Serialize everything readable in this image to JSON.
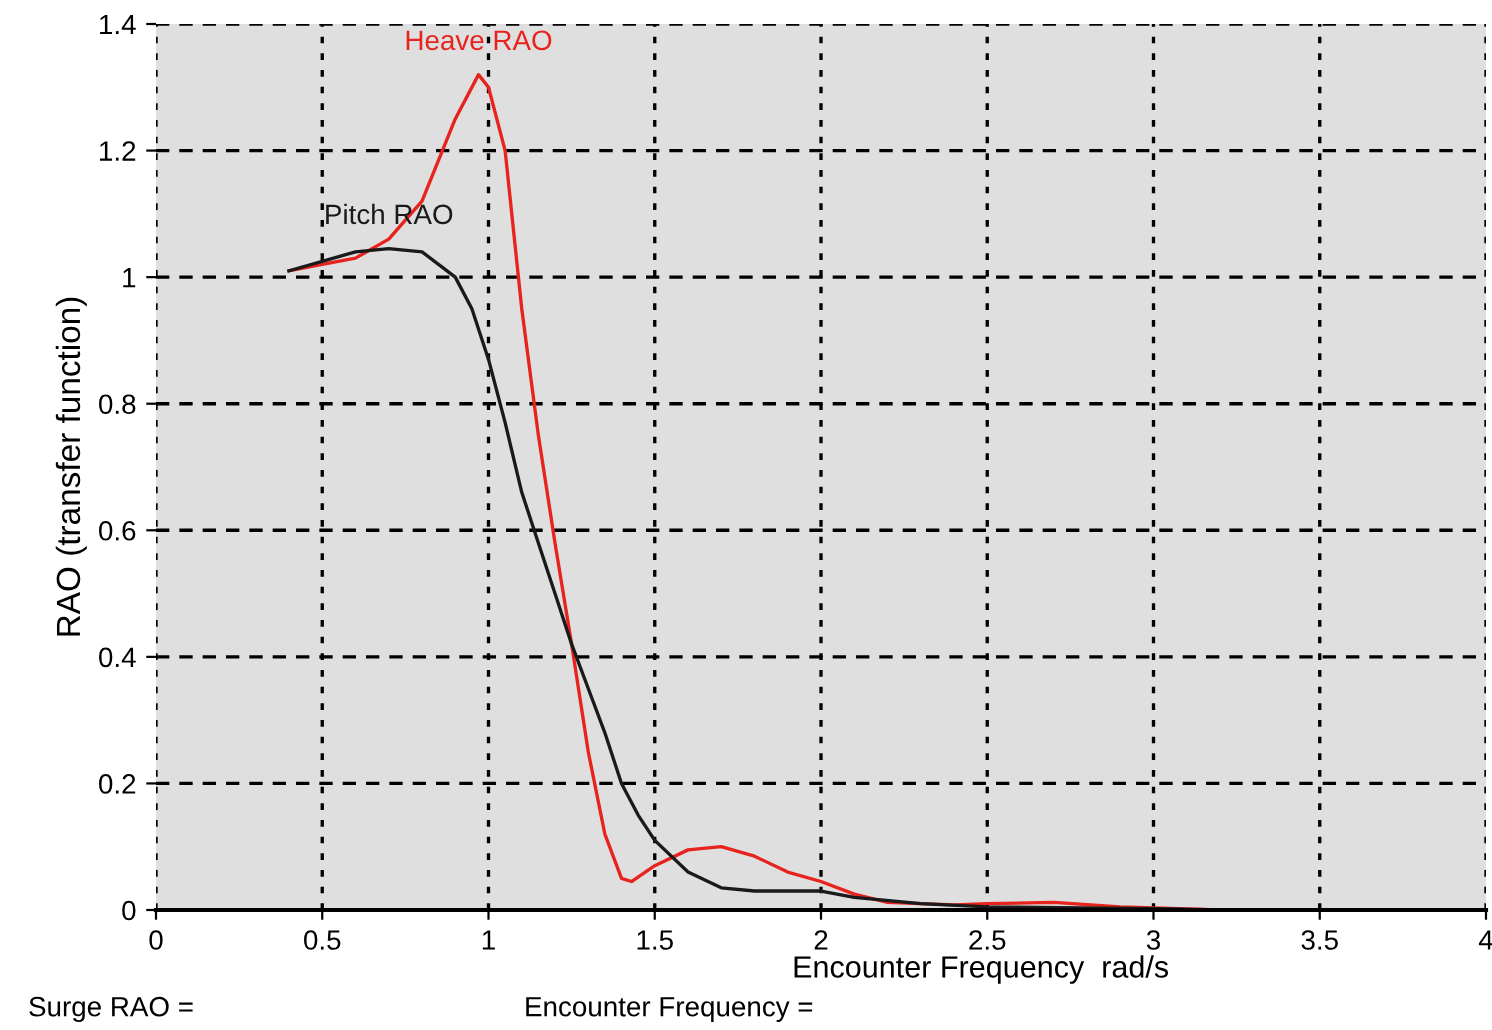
{
  "chart_data": {
    "type": "line",
    "xlabel": "Encounter Frequency  rad/s",
    "ylabel": "RAO (transfer function)",
    "xlim": [
      0,
      4
    ],
    "ylim": [
      0,
      1.4
    ],
    "xticks": [
      0,
      0.5,
      1,
      1.5,
      2,
      2.5,
      3,
      3.5,
      4
    ],
    "yticks": [
      0,
      0.2,
      0.4,
      0.6,
      0.8,
      1,
      1.2,
      1.4
    ],
    "grid": true,
    "line_style": "solid",
    "marker": "none",
    "legend": false,
    "series": [
      {
        "name": "Heave RAO",
        "color": "#e8221c",
        "x": [
          0.4,
          0.5,
          0.6,
          0.7,
          0.8,
          0.9,
          0.97,
          1.0,
          1.05,
          1.1,
          1.15,
          1.2,
          1.25,
          1.3,
          1.35,
          1.4,
          1.43,
          1.5,
          1.6,
          1.7,
          1.8,
          1.9,
          2.0,
          2.1,
          2.2,
          2.4,
          2.5,
          2.7,
          2.9,
          3.2,
          4.0
        ],
        "values": [
          1.01,
          1.02,
          1.03,
          1.06,
          1.12,
          1.25,
          1.32,
          1.3,
          1.2,
          0.95,
          0.75,
          0.58,
          0.42,
          0.25,
          0.12,
          0.05,
          0.045,
          0.07,
          0.095,
          0.1,
          0.085,
          0.06,
          0.045,
          0.025,
          0.012,
          0.008,
          0.01,
          0.012,
          0.005,
          0,
          0
        ]
      },
      {
        "name": "Pitch RAO",
        "color": "#1a1a1a",
        "x": [
          0.4,
          0.5,
          0.6,
          0.7,
          0.8,
          0.9,
          0.95,
          1.0,
          1.05,
          1.1,
          1.15,
          1.2,
          1.25,
          1.3,
          1.35,
          1.4,
          1.45,
          1.5,
          1.6,
          1.7,
          1.8,
          2.0,
          2.1,
          2.3,
          2.5,
          3.0,
          3.2
        ],
        "values": [
          1.01,
          1.025,
          1.04,
          1.045,
          1.04,
          1.0,
          0.95,
          0.87,
          0.77,
          0.66,
          0.58,
          0.5,
          0.42,
          0.35,
          0.28,
          0.2,
          0.15,
          0.11,
          0.06,
          0.035,
          0.03,
          0.03,
          0.02,
          0.01,
          0.005,
          0.002,
          0
        ]
      }
    ],
    "annotations": [
      "Surge RAO =",
      "Encounter Frequency ="
    ]
  }
}
